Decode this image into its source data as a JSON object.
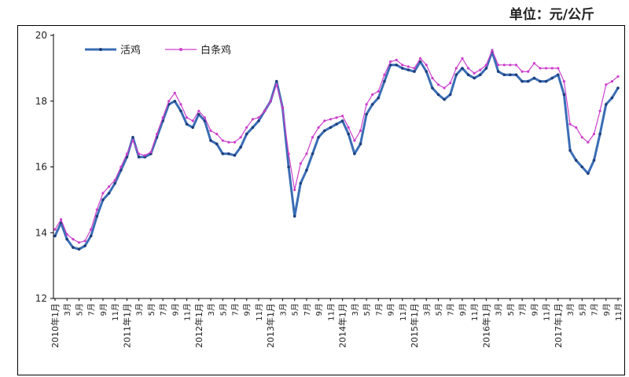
{
  "unit": "单位：元/公斤",
  "chart_data": {
    "type": "line",
    "ylim": [
      12,
      20
    ],
    "yticks": [
      12,
      14,
      16,
      18,
      20
    ],
    "legend": [
      {
        "name": "活鸡",
        "color": "#3a6db5"
      },
      {
        "name": "白条鸡",
        "color": "#cc3fcc"
      }
    ],
    "x_labels": [
      "2010年1月",
      "3月",
      "5月",
      "7月",
      "9月",
      "11月",
      "2011年1月",
      "3月",
      "5月",
      "7月",
      "9月",
      "11月",
      "2012年1月",
      "3月",
      "5月",
      "7月",
      "9月",
      "11月",
      "2013年1月",
      "3月",
      "5月",
      "7月",
      "9月",
      "11月",
      "2014年1月",
      "3月",
      "5月",
      "7月",
      "9月",
      "11月",
      "2015年1月",
      "3月",
      "5月",
      "7月",
      "9月",
      "11月",
      "2016年1月",
      "3月",
      "5月",
      "7月",
      "9月",
      "11月",
      "2017年1月",
      "3月",
      "5月",
      "7月",
      "9月",
      "11月"
    ],
    "series": [
      {
        "name": "活鸡",
        "color": "#3a6db5",
        "values": [
          13.9,
          14.3,
          13.8,
          13.55,
          13.5,
          13.6,
          13.9,
          14.5,
          15.0,
          15.2,
          15.5,
          15.9,
          16.3,
          16.9,
          16.3,
          16.3,
          16.4,
          16.9,
          17.4,
          17.9,
          18.0,
          17.7,
          17.3,
          17.2,
          17.6,
          17.4,
          16.8,
          16.7,
          16.4,
          16.4,
          16.35,
          16.6,
          17.0,
          17.2,
          17.4,
          17.7,
          18.0,
          18.6,
          17.8,
          16.0,
          14.5,
          15.5,
          15.9,
          16.4,
          16.9,
          17.1,
          17.2,
          17.3,
          17.4,
          17.0,
          16.4,
          16.7,
          17.6,
          17.9,
          18.1,
          18.6,
          19.1,
          19.1,
          19.0,
          18.95,
          18.9,
          19.2,
          18.9,
          18.4,
          18.2,
          18.05,
          18.2,
          18.8,
          19.0,
          18.8,
          18.7,
          18.8,
          19.0,
          19.5,
          18.9,
          18.8,
          18.8,
          18.8,
          18.6,
          18.6,
          18.7,
          18.6,
          18.6,
          18.7,
          18.8,
          18.2,
          16.5,
          16.2,
          16.0,
          15.8,
          16.2,
          17.0,
          17.9,
          18.1,
          18.4
        ]
      },
      {
        "name": "白条鸡",
        "color": "#cc3fcc",
        "values": [
          14.1,
          14.4,
          13.95,
          13.8,
          13.7,
          13.75,
          14.1,
          14.7,
          15.2,
          15.4,
          15.6,
          16.0,
          16.4,
          16.8,
          16.4,
          16.35,
          16.45,
          17.0,
          17.5,
          18.0,
          18.25,
          17.9,
          17.5,
          17.4,
          17.7,
          17.5,
          17.1,
          17.0,
          16.8,
          16.75,
          16.75,
          16.9,
          17.2,
          17.45,
          17.5,
          17.7,
          18.0,
          18.5,
          17.8,
          16.4,
          15.3,
          16.1,
          16.4,
          16.9,
          17.2,
          17.4,
          17.45,
          17.5,
          17.55,
          17.2,
          16.8,
          17.1,
          17.9,
          18.2,
          18.3,
          18.8,
          19.2,
          19.25,
          19.1,
          19.05,
          19.0,
          19.3,
          19.1,
          18.7,
          18.5,
          18.4,
          18.55,
          19.0,
          19.3,
          19.0,
          18.85,
          18.95,
          19.1,
          19.55,
          19.1,
          19.1,
          19.1,
          19.1,
          18.9,
          18.9,
          19.15,
          19.0,
          19.0,
          19.0,
          19.0,
          18.6,
          17.3,
          17.2,
          16.9,
          16.75,
          17.0,
          17.7,
          18.5,
          18.6,
          18.75
        ]
      }
    ]
  }
}
